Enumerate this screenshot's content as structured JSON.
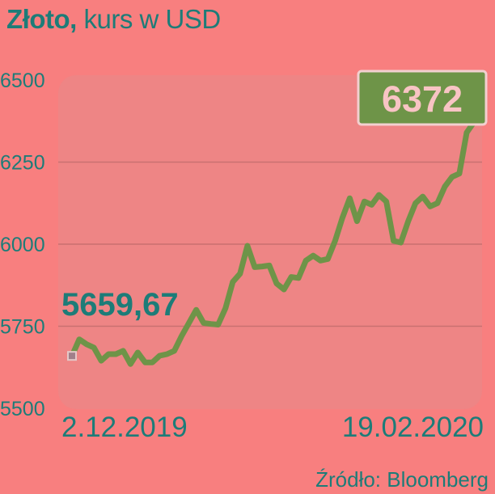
{
  "header": {
    "title_bold": "Złoto,",
    "title_rest": " kurs w USD"
  },
  "source": "Źródło: Bloomberg",
  "colors": {
    "background": "#f87f7f",
    "text": "#1d7c78",
    "line": "#6e9448",
    "plot_area": "#ee8585",
    "badge": "#6e9448"
  },
  "chart_data": {
    "type": "line",
    "title": "Złoto, kurs w USD",
    "xlabel": "",
    "ylabel": "",
    "ylim": [
      5500,
      6500
    ],
    "yticks": [
      5500,
      5750,
      6000,
      6250,
      6500
    ],
    "x_tick_labels": [
      "2.12.2019",
      "19.02.2020"
    ],
    "start_label": "5659,67",
    "end_label": "6372",
    "grid": true,
    "values": [
      5659.67,
      5710,
      5695,
      5685,
      5645,
      5665,
      5665,
      5675,
      5635,
      5670,
      5640,
      5640,
      5660,
      5665,
      5675,
      5720,
      5760,
      5800,
      5760,
      5757,
      5755,
      5805,
      5885,
      5910,
      5995,
      5930,
      5932,
      5935,
      5880,
      5862,
      5900,
      5897,
      5950,
      5965,
      5950,
      5955,
      6010,
      6080,
      6140,
      6070,
      6130,
      6120,
      6150,
      6130,
      6010,
      6005,
      6070,
      6125,
      6145,
      6115,
      6125,
      6175,
      6205,
      6215,
      6340,
      6372
    ]
  }
}
